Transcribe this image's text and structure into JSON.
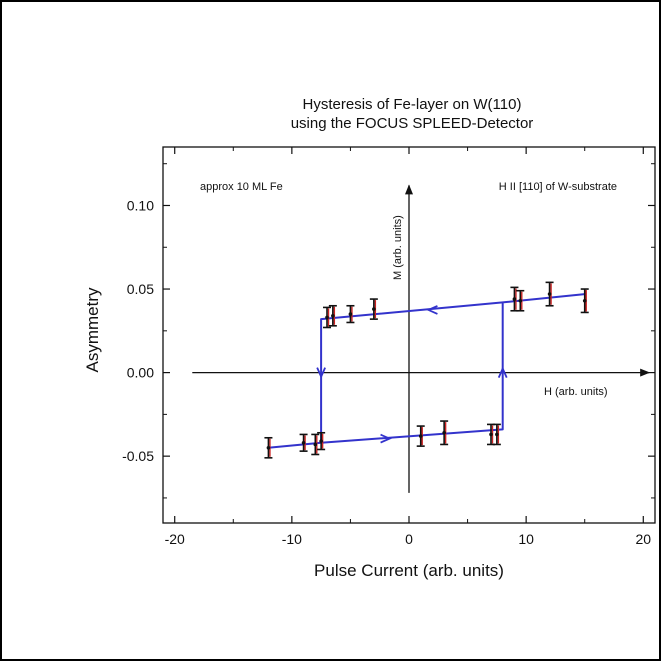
{
  "chart_data": {
    "type": "scatter",
    "title_lines": [
      "Hysteresis of Fe-layer on W(110)",
      "using the FOCUS SPLEED-Detector"
    ],
    "xlabel": "Pulse Current (arb. units)",
    "ylabel": "Asymmetry",
    "xlim": [
      -21,
      21
    ],
    "ylim": [
      -0.09,
      0.135
    ],
    "x_ticks": [
      -20,
      -10,
      0,
      10,
      20
    ],
    "x_tick_labels": [
      "-20",
      "-10",
      "0",
      "10",
      "20"
    ],
    "y_ticks": [
      -0.05,
      0.0,
      0.05,
      0.1
    ],
    "y_tick_labels": [
      "-0.05",
      "0.00",
      "0.05",
      "0.10"
    ],
    "grid": false,
    "annotations": {
      "top_left": "approx 10 ML Fe",
      "top_right": "H II [110] of W-substrate",
      "inner_y_axis": "M (arb. units)",
      "inner_x_axis": "H (arb. units)"
    },
    "inner_axes": {
      "horizontal": {
        "y": 0.0,
        "x_from": -18.5,
        "x_to": 20.5
      },
      "vertical": {
        "x": 0.0,
        "y_from": -0.072,
        "y_to": 0.112
      }
    },
    "series": [
      {
        "points": [
          {
            "x": -12.0,
            "y": -0.045,
            "err": 0.006
          },
          {
            "x": -9.0,
            "y": -0.042,
            "err": 0.005
          },
          {
            "x": -8.0,
            "y": -0.043,
            "err": 0.006
          },
          {
            "x": -7.5,
            "y": -0.041,
            "err": 0.005
          },
          {
            "x": -7.0,
            "y": 0.033,
            "err": 0.006
          },
          {
            "x": -6.5,
            "y": 0.034,
            "err": 0.006
          },
          {
            "x": -5.0,
            "y": 0.035,
            "err": 0.005
          },
          {
            "x": -3.0,
            "y": 0.038,
            "err": 0.006
          },
          {
            "x": 1.0,
            "y": -0.038,
            "err": 0.006
          },
          {
            "x": 3.0,
            "y": -0.036,
            "err": 0.007
          },
          {
            "x": 7.0,
            "y": -0.037,
            "err": 0.006
          },
          {
            "x": 7.5,
            "y": -0.037,
            "err": 0.006
          },
          {
            "x": 9.0,
            "y": 0.044,
            "err": 0.007
          },
          {
            "x": 9.5,
            "y": 0.043,
            "err": 0.006
          },
          {
            "x": 12.0,
            "y": 0.047,
            "err": 0.007
          },
          {
            "x": 15.0,
            "y": 0.043,
            "err": 0.007
          }
        ]
      }
    ],
    "loop_path": [
      [
        -12.0,
        -0.045
      ],
      [
        -7.5,
        -0.042
      ],
      [
        8.0,
        -0.034
      ],
      [
        8.0,
        0.042
      ],
      [
        15.0,
        0.047
      ],
      [
        8.0,
        0.042
      ],
      [
        -7.5,
        0.032
      ],
      [
        -7.5,
        -0.042
      ]
    ],
    "loop_arrows": [
      {
        "x": -2.0,
        "y": -0.0395,
        "dir": "right"
      },
      {
        "x": 2.0,
        "y": 0.0375,
        "dir": "left"
      },
      {
        "x": -7.5,
        "y": 0.0,
        "dir": "down"
      },
      {
        "x": 8.0,
        "y": 0.0,
        "dir": "up"
      }
    ],
    "colors": {
      "fit_line": "#3333cc",
      "error_bar": "#111111",
      "error_bar_accent": "#cc2222",
      "axes": "#111111"
    }
  }
}
